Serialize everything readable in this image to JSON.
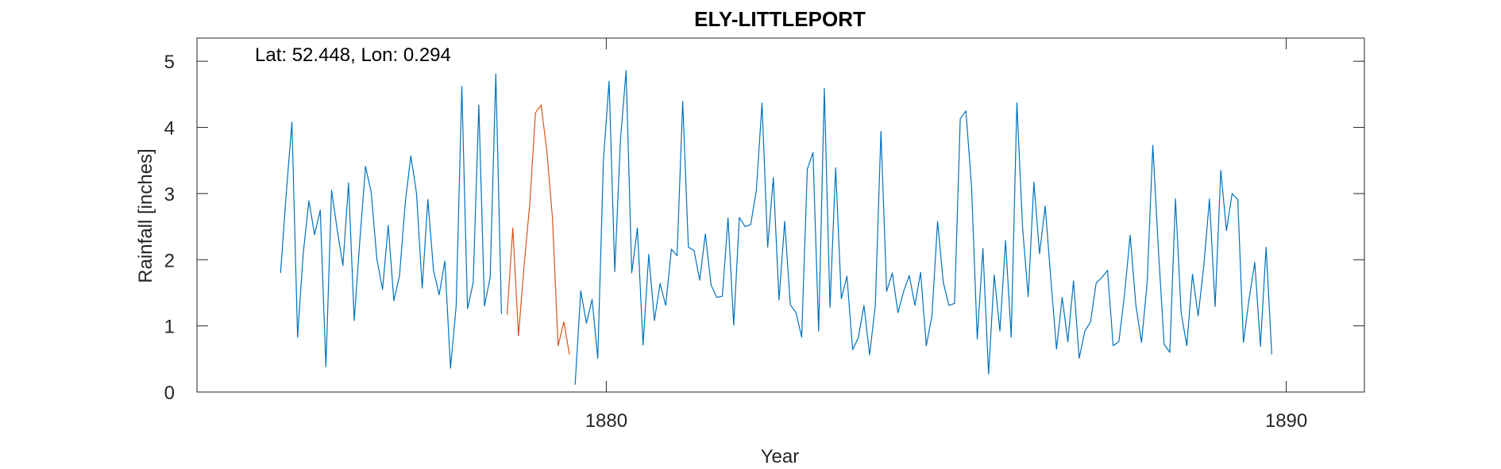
{
  "chart_data": {
    "type": "line",
    "title": "ELY-LITTLEPORT",
    "xlabel": "Year",
    "ylabel": "Rainfall [inches]",
    "annotation": "Lat: 52.448, Lon: 0.294",
    "xlim": [
      1873.98,
      1891.15
    ],
    "ylim": [
      0,
      5.35
    ],
    "xticks": [
      1880,
      1890
    ],
    "xtick_labels": [
      "1880",
      "1890"
    ],
    "yticks": [
      0,
      1,
      2,
      3,
      4,
      5
    ],
    "ytick_labels": [
      "0",
      "1",
      "2",
      "3",
      "4",
      "5"
    ],
    "grid": false,
    "legend": "none",
    "start_year": 1875.21,
    "step_years": 0.0833,
    "series": [
      {
        "color": "#0072BD",
        "values": [
          1.8,
          3.0,
          4.08,
          0.83,
          2.1,
          2.89,
          2.38,
          2.75,
          0.38,
          3.05,
          2.45,
          1.91,
          3.16,
          1.08,
          2.3,
          3.41,
          3.02,
          2.01,
          1.55,
          2.52,
          1.38,
          1.76,
          2.85,
          3.57,
          3.0,
          1.57,
          2.91,
          1.84,
          1.47,
          1.98,
          0.36,
          1.3,
          4.62,
          1.26,
          1.65,
          4.34,
          1.3,
          1.73,
          4.81,
          1.18,
          null,
          null,
          null,
          null,
          null,
          null,
          null,
          null,
          null,
          null,
          null,
          null,
          0.11,
          1.53,
          1.04,
          1.4,
          0.51,
          3.5,
          4.7,
          1.82,
          3.8,
          4.86,
          1.8,
          2.48,
          0.71,
          2.08,
          1.08,
          1.64,
          1.31,
          2.16,
          2.06,
          4.39,
          2.19,
          2.14,
          1.69,
          2.39,
          1.62,
          1.43,
          1.45,
          2.63,
          1.01,
          2.64,
          2.5,
          2.53,
          3.05,
          4.37,
          2.19,
          3.24,
          1.39,
          2.58,
          1.32,
          1.2,
          0.83,
          3.37,
          3.62,
          0.92,
          4.59,
          1.28,
          3.39,
          1.41,
          1.75,
          0.64,
          0.82,
          1.31,
          0.56,
          1.31,
          3.94,
          1.52,
          1.8,
          1.2,
          1.52,
          1.76,
          1.31,
          1.81,
          0.7,
          1.15,
          2.58,
          1.66,
          1.31,
          1.34,
          4.13,
          4.25,
          3.1,
          0.8,
          2.17,
          0.27,
          1.77,
          0.92,
          2.29,
          0.83,
          4.37,
          2.49,
          1.44,
          3.17,
          2.09,
          2.81,
          1.7,
          0.65,
          1.43,
          0.76,
          1.68,
          0.51,
          0.92,
          1.06,
          1.65,
          1.73,
          1.84,
          0.7,
          0.76,
          1.47,
          2.37,
          1.32,
          0.75,
          1.65,
          3.73,
          2.13,
          0.72,
          0.6,
          2.92,
          1.2,
          0.7,
          1.78,
          1.15,
          1.9,
          2.92,
          1.29,
          3.35,
          2.44,
          3.0,
          2.91,
          0.75,
          1.41,
          1.96,
          0.69,
          2.19,
          0.57
        ]
      },
      {
        "color": "#D95319",
        "values": [
          null,
          null,
          null,
          null,
          null,
          null,
          null,
          null,
          null,
          null,
          null,
          null,
          null,
          null,
          null,
          null,
          null,
          null,
          null,
          null,
          null,
          null,
          null,
          null,
          null,
          null,
          null,
          null,
          null,
          null,
          null,
          null,
          null,
          null,
          null,
          null,
          null,
          null,
          null,
          null,
          1.17,
          2.48,
          0.85,
          1.92,
          2.85,
          4.22,
          4.34,
          3.65,
          2.63,
          0.7,
          1.06,
          0.57,
          null
        ]
      }
    ]
  }
}
